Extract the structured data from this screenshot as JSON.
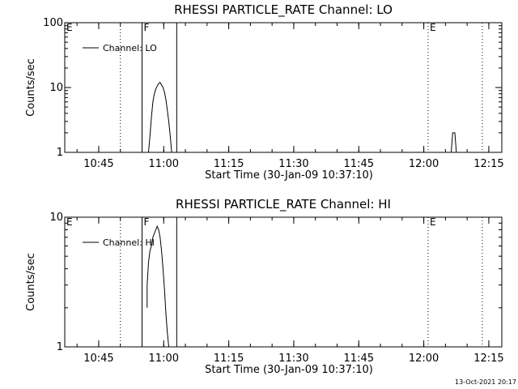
{
  "chart_data": [
    {
      "type": "line",
      "title": "RHESSI PARTICLE_RATE Channel: LO",
      "xlabel": "Start Time (30-Jan-09 10:37:10)",
      "ylabel": "Counts/sec",
      "yscale": "log",
      "xlim": [
        "10:37:10",
        "12:18:00"
      ],
      "ylim": [
        1,
        100
      ],
      "xticks": [
        "10:45",
        "11:00",
        "11:15",
        "11:30",
        "11:45",
        "12:00",
        "12:15"
      ],
      "yticks": [
        1,
        10,
        100
      ],
      "ytick_labels": [
        "1",
        "10",
        "100"
      ],
      "grid": false,
      "legend": {
        "placement": "top-left",
        "entries": [
          "Channel: LO"
        ]
      },
      "markers": [
        {
          "label": "E",
          "time": "10:37:10",
          "style": "dotted",
          "label_visible": true
        },
        {
          "label": "",
          "time": "10:50:00",
          "style": "dotted",
          "label_visible": false
        },
        {
          "label": "F",
          "time": "10:55:00",
          "style": "solid",
          "label_visible": true
        },
        {
          "label": "",
          "time": "11:03:00",
          "style": "solid",
          "label_visible": false
        },
        {
          "label": "E",
          "time": "12:01:00",
          "style": "dotted",
          "label_visible": true
        },
        {
          "label": "",
          "time": "12:13:30",
          "style": "dotted",
          "label_visible": false
        }
      ],
      "series": [
        {
          "name": "Channel: LO",
          "segments": [
            {
              "x": [
                "10:56:30",
                "10:56:50",
                "10:57:10",
                "10:57:30",
                "10:57:50",
                "10:58:10",
                "10:58:30",
                "10:58:50",
                "10:59:10",
                "10:59:30",
                "10:59:50",
                "11:00:10",
                "11:00:30",
                "11:00:50",
                "11:01:10",
                "11:01:30",
                "11:01:50"
              ],
              "y": [
                1.0,
                1.8,
                3.5,
                6.0,
                8.0,
                9.5,
                10.5,
                11.5,
                12.0,
                11.0,
                10.0,
                8.5,
                6.5,
                4.5,
                3.0,
                1.8,
                1.0
              ]
            },
            {
              "x": [
                "12:06:20",
                "12:06:40",
                "12:07:10",
                "12:07:30"
              ],
              "y": [
                1.0,
                2.0,
                2.0,
                1.0
              ]
            }
          ]
        }
      ]
    },
    {
      "type": "line",
      "title": "RHESSI PARTICLE_RATE Channel: HI",
      "xlabel": "Start Time (30-Jan-09 10:37:10)",
      "ylabel": "Counts/sec",
      "yscale": "log",
      "xlim": [
        "10:37:10",
        "12:18:00"
      ],
      "ylim": [
        1,
        10
      ],
      "xticks": [
        "10:45",
        "11:00",
        "11:15",
        "11:30",
        "11:45",
        "12:00",
        "12:15"
      ],
      "yticks": [
        1,
        10
      ],
      "ytick_labels": [
        "1",
        "10"
      ],
      "grid": false,
      "legend": {
        "placement": "top-left",
        "entries": [
          "Channel: HI"
        ]
      },
      "markers": [
        {
          "label": "E",
          "time": "10:37:10",
          "style": "dotted",
          "label_visible": true
        },
        {
          "label": "",
          "time": "10:50:00",
          "style": "dotted",
          "label_visible": false
        },
        {
          "label": "F",
          "time": "10:55:00",
          "style": "solid",
          "label_visible": true
        },
        {
          "label": "",
          "time": "11:03:00",
          "style": "solid",
          "label_visible": false
        },
        {
          "label": "E",
          "time": "12:01:00",
          "style": "dotted",
          "label_visible": true
        },
        {
          "label": "",
          "time": "12:13:30",
          "style": "dotted",
          "label_visible": false
        }
      ],
      "series": [
        {
          "name": "Channel: HI",
          "segments": [
            {
              "x": [
                "10:56:10",
                "10:56:10",
                "10:56:30",
                "10:56:50",
                "10:57:10",
                "10:57:30",
                "10:57:50",
                "10:58:10",
                "10:58:30",
                "10:58:50",
                "10:59:10",
                "10:59:30",
                "10:59:50",
                "11:00:10",
                "11:00:30",
                "11:00:50",
                "11:01:10"
              ],
              "y": [
                2.0,
                3.0,
                4.5,
                5.5,
                6.0,
                7.0,
                7.5,
                8.0,
                8.5,
                8.0,
                7.0,
                5.5,
                4.0,
                2.8,
                1.8,
                1.3,
                1.0
              ]
            }
          ]
        }
      ]
    }
  ],
  "footer": {
    "timestamp": "13-Oct-2021 20:17"
  }
}
